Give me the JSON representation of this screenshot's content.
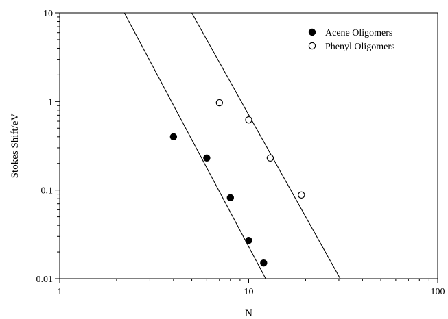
{
  "chart_data": {
    "type": "scatter",
    "xlabel": "N",
    "ylabel": "Stokes Shift/eV",
    "xscale": "log",
    "yscale": "log",
    "xlim": [
      1,
      100
    ],
    "ylim": [
      0.01,
      10
    ],
    "x_ticks": [
      {
        "value": 1,
        "label": "1"
      },
      {
        "value": 10,
        "label": "10"
      },
      {
        "value": 100,
        "label": "100"
      }
    ],
    "y_ticks": [
      {
        "value": 0.01,
        "label": "0.01"
      },
      {
        "value": 0.1,
        "label": "0.1"
      },
      {
        "value": 1,
        "label": "1"
      },
      {
        "value": 10,
        "label": "10"
      }
    ],
    "grid": false,
    "legend_position": "top-right",
    "series": [
      {
        "name": "Acene Oligomers",
        "marker": "filled-circle",
        "color": "#000000",
        "x": [
          4,
          6,
          8,
          10,
          12
        ],
        "y": [
          0.4,
          0.23,
          0.082,
          0.027,
          0.015
        ]
      },
      {
        "name": "Phenyl Oligomers",
        "marker": "open-circle",
        "color": "#000000",
        "x": [
          7,
          10,
          13,
          19
        ],
        "y": [
          0.97,
          0.62,
          0.23,
          0.088
        ]
      }
    ],
    "fit_lines": [
      {
        "x": [
          2.2,
          12.3
        ],
        "y": [
          10,
          0.01
        ]
      },
      {
        "x": [
          5.0,
          30.5
        ],
        "y": [
          10,
          0.01
        ]
      }
    ]
  }
}
